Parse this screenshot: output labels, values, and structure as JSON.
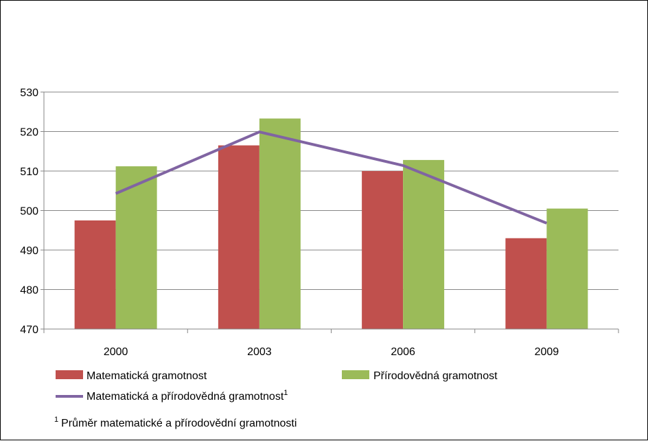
{
  "chart_data": {
    "type": "bar",
    "categories": [
      "2000",
      "2003",
      "2006",
      "2009"
    ],
    "series": [
      {
        "name": "Matematická gramotnost",
        "kind": "bar",
        "color": "#c0504d",
        "values": [
          497.5,
          516.5,
          510,
          493
        ]
      },
      {
        "name": "Přírodovědná gramotnost",
        "kind": "bar",
        "color": "#9bbb59",
        "values": [
          511.2,
          523.3,
          512.8,
          500.5
        ]
      },
      {
        "name": "Matematická a přírodovědná gramotnost",
        "name_sup": "1",
        "kind": "line",
        "color": "#8064a2",
        "values": [
          504.3,
          519.9,
          511.4,
          496.8
        ]
      }
    ],
    "ylim": [
      470,
      530
    ],
    "yticks": [
      "530",
      "520",
      "510",
      "500",
      "490",
      "480",
      "470"
    ],
    "grid": true,
    "legend_position": "bottom"
  },
  "footnote": {
    "marker": "1",
    "text": "Průměr matematické a přírodovědní gramotnosti"
  }
}
